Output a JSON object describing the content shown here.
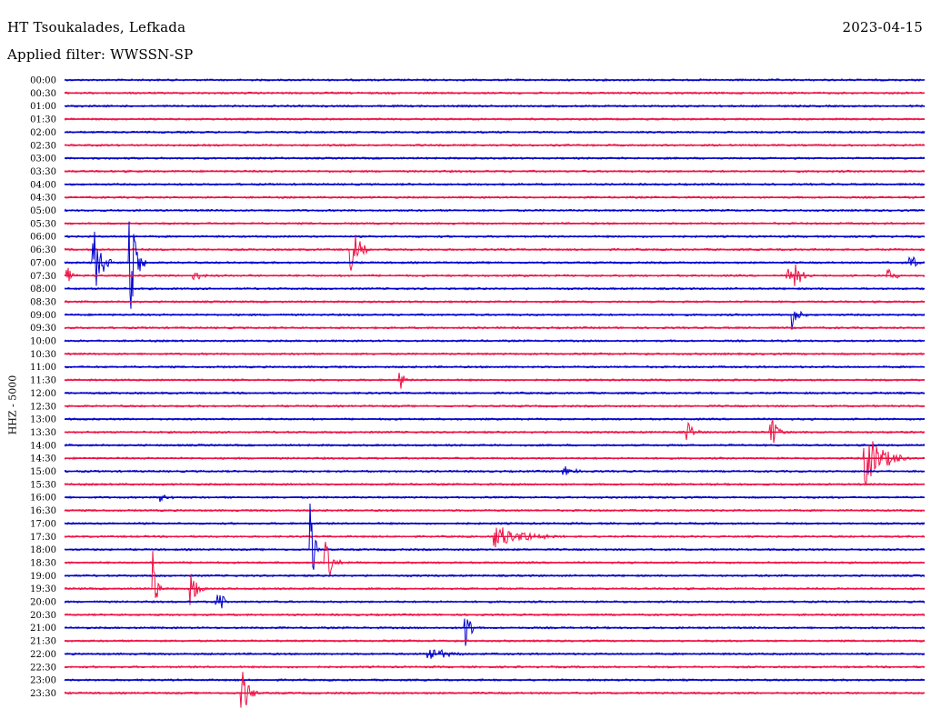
{
  "header": {
    "station": "HT Tsoukalades, Lefkada",
    "filter": "Applied filter: WWSSN-SP",
    "date": "2023-04-15"
  },
  "channel_label": "HHZ - 5000",
  "colors": {
    "blue": "#0000cc",
    "red": "#ee1144"
  },
  "chart_data": {
    "type": "line",
    "title": "HT Tsoukalades, Lefkada",
    "subtitle": "Applied filter: WWSSN-SP",
    "ylabel": "HHZ - 5000",
    "xlabel": "",
    "grid": false,
    "rows": [
      {
        "label": "00:00",
        "color": "blue"
      },
      {
        "label": "00:30",
        "color": "red"
      },
      {
        "label": "01:00",
        "color": "blue"
      },
      {
        "label": "01:30",
        "color": "red"
      },
      {
        "label": "02:00",
        "color": "blue"
      },
      {
        "label": "02:30",
        "color": "red"
      },
      {
        "label": "03:00",
        "color": "blue"
      },
      {
        "label": "03:30",
        "color": "red"
      },
      {
        "label": "04:00",
        "color": "blue"
      },
      {
        "label": "04:30",
        "color": "red"
      },
      {
        "label": "05:00",
        "color": "blue"
      },
      {
        "label": "05:30",
        "color": "red"
      },
      {
        "label": "06:00",
        "color": "blue"
      },
      {
        "label": "06:30",
        "color": "red"
      },
      {
        "label": "07:00",
        "color": "blue"
      },
      {
        "label": "07:30",
        "color": "red"
      },
      {
        "label": "08:00",
        "color": "blue"
      },
      {
        "label": "08:30",
        "color": "red"
      },
      {
        "label": "09:00",
        "color": "blue"
      },
      {
        "label": "09:30",
        "color": "red"
      },
      {
        "label": "10:00",
        "color": "blue"
      },
      {
        "label": "10:30",
        "color": "red"
      },
      {
        "label": "11:00",
        "color": "blue"
      },
      {
        "label": "11:30",
        "color": "red"
      },
      {
        "label": "12:00",
        "color": "blue"
      },
      {
        "label": "12:30",
        "color": "red"
      },
      {
        "label": "13:00",
        "color": "blue"
      },
      {
        "label": "13:30",
        "color": "red"
      },
      {
        "label": "14:00",
        "color": "blue"
      },
      {
        "label": "14:30",
        "color": "red"
      },
      {
        "label": "15:00",
        "color": "blue"
      },
      {
        "label": "15:30",
        "color": "red"
      },
      {
        "label": "16:00",
        "color": "blue"
      },
      {
        "label": "16:30",
        "color": "red"
      },
      {
        "label": "17:00",
        "color": "blue"
      },
      {
        "label": "17:30",
        "color": "red"
      },
      {
        "label": "18:00",
        "color": "blue"
      },
      {
        "label": "18:30",
        "color": "red"
      },
      {
        "label": "19:00",
        "color": "blue"
      },
      {
        "label": "19:30",
        "color": "red"
      },
      {
        "label": "20:00",
        "color": "blue"
      },
      {
        "label": "20:30",
        "color": "red"
      },
      {
        "label": "21:00",
        "color": "blue"
      },
      {
        "label": "21:30",
        "color": "red"
      },
      {
        "label": "22:00",
        "color": "blue"
      },
      {
        "label": "22:30",
        "color": "red"
      },
      {
        "label": "23:00",
        "color": "blue"
      },
      {
        "label": "23:30",
        "color": "red"
      }
    ],
    "events": [
      {
        "row": 13,
        "minute": 10.0,
        "amplitude": 1.0,
        "duration_min": 0.7
      },
      {
        "row": 14,
        "minute": 1.0,
        "amplitude": 1.5,
        "duration_min": 0.7
      },
      {
        "row": 14,
        "minute": 2.3,
        "amplitude": 2.0,
        "duration_min": 0.6
      },
      {
        "row": 14,
        "minute": 29.5,
        "amplitude": 0.5,
        "duration_min": 0.5
      },
      {
        "row": 15,
        "minute": 0.1,
        "amplitude": 0.4,
        "duration_min": 0.4
      },
      {
        "row": 15,
        "minute": 4.5,
        "amplitude": 0.4,
        "duration_min": 0.6
      },
      {
        "row": 15,
        "minute": 25.2,
        "amplitude": 0.4,
        "duration_min": 0.4
      },
      {
        "row": 15,
        "minute": 25.5,
        "amplitude": 0.7,
        "duration_min": 0.5
      },
      {
        "row": 15,
        "minute": 28.7,
        "amplitude": 0.4,
        "duration_min": 0.6
      },
      {
        "row": 18,
        "minute": 25.4,
        "amplitude": 0.6,
        "duration_min": 0.5
      },
      {
        "row": 23,
        "minute": 11.7,
        "amplitude": 0.5,
        "duration_min": 0.3
      },
      {
        "row": 27,
        "minute": 21.7,
        "amplitude": 0.6,
        "duration_min": 0.5
      },
      {
        "row": 27,
        "minute": 24.6,
        "amplitude": 0.9,
        "duration_min": 0.6
      },
      {
        "row": 29,
        "minute": 27.9,
        "amplitude": 1.2,
        "duration_min": 1.6
      },
      {
        "row": 30,
        "minute": 17.4,
        "amplitude": 0.3,
        "duration_min": 0.8
      },
      {
        "row": 32,
        "minute": 3.3,
        "amplitude": 0.3,
        "duration_min": 0.6
      },
      {
        "row": 35,
        "minute": 15.0,
        "amplitude": 0.5,
        "duration_min": 2.5
      },
      {
        "row": 36,
        "minute": 8.6,
        "amplitude": 2.0,
        "duration_min": 0.3
      },
      {
        "row": 37,
        "minute": 9.1,
        "amplitude": 1.0,
        "duration_min": 0.6
      },
      {
        "row": 39,
        "minute": 3.1,
        "amplitude": 1.5,
        "duration_min": 0.3
      },
      {
        "row": 39,
        "minute": 4.4,
        "amplitude": 0.9,
        "duration_min": 0.5
      },
      {
        "row": 40,
        "minute": 5.3,
        "amplitude": 2.0,
        "duration_min": 0.3
      },
      {
        "row": 42,
        "minute": 14.0,
        "amplitude": 1.5,
        "duration_min": 0.3
      },
      {
        "row": 44,
        "minute": 12.7,
        "amplitude": 0.4,
        "duration_min": 1.2
      },
      {
        "row": 47,
        "minute": 6.2,
        "amplitude": 1.0,
        "duration_min": 0.6
      }
    ]
  }
}
